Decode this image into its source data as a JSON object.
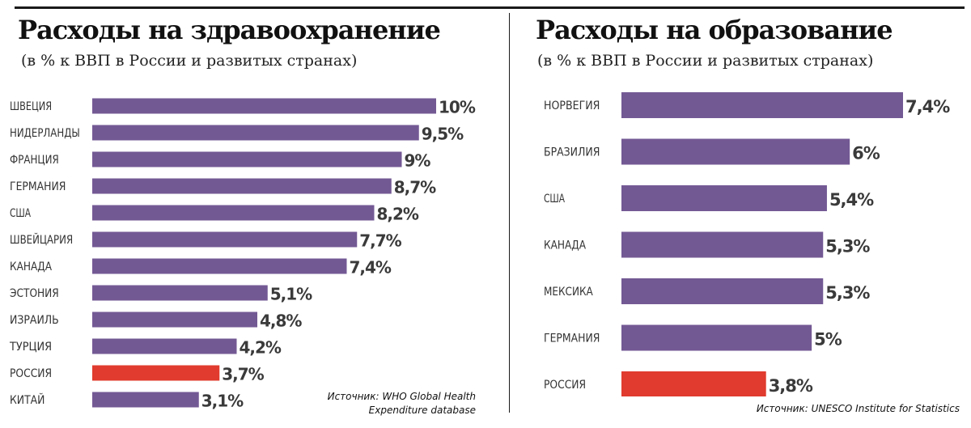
{
  "colors": {
    "bar": "#735994",
    "highlight": "#e03b2e",
    "text": "#333333",
    "value": "#3a3a3a"
  },
  "left": {
    "title": "Расходы на здравоохранение",
    "subtitle": "(в % к ВВП в России и развитых странах)",
    "source_line1": "Источник: WHO Global Health",
    "source_line2": "Expenditure database"
  },
  "right": {
    "title": "Расходы на образование",
    "subtitle": "(в % к ВВП в России и развитых странах)",
    "source_line1": "Источник: UNESCO Institute for Statistics"
  },
  "chart_data": [
    {
      "type": "bar",
      "orientation": "horizontal",
      "title": "Расходы на здравоохранение",
      "subtitle": "(в % к ВВП в России и развитых странах)",
      "categories": [
        "ШВЕЦИЯ",
        "НИДЕРЛАНДЫ",
        "ФРАНЦИЯ",
        "ГЕРМАНИЯ",
        "США",
        "ШВЕЙЦАРИЯ",
        "КАНАДА",
        "ЭСТОНИЯ",
        "ИЗРАИЛЬ",
        "ТУРЦИЯ",
        "РОССИЯ",
        "КИТАЙ"
      ],
      "values": [
        10,
        9.5,
        9,
        8.7,
        8.2,
        7.7,
        7.4,
        5.1,
        4.8,
        4.2,
        3.7,
        3.1
      ],
      "value_labels": [
        "10%",
        "9,5%",
        "9%",
        "8,7%",
        "8,2%",
        "7,7%",
        "7,4%",
        "5,1%",
        "4,8%",
        "4,2%",
        "3,7%",
        "3,1%"
      ],
      "highlight": "РОССИЯ",
      "xlim": [
        0,
        10
      ],
      "grid": false,
      "legend": "none"
    },
    {
      "type": "bar",
      "orientation": "horizontal",
      "title": "Расходы на образование",
      "subtitle": "(в % к ВВП в России и развитых странах)",
      "categories": [
        "НОРВЕГИЯ",
        "БРАЗИЛИЯ",
        "США",
        "КАНАДА",
        "МЕКСИКА",
        "ГЕРМАНИЯ",
        "РОССИЯ"
      ],
      "values": [
        7.4,
        6,
        5.4,
        5.3,
        5.3,
        5,
        3.8
      ],
      "value_labels": [
        "7,4%",
        "6%",
        "5,4%",
        "5,3%",
        "5,3%",
        "5%",
        "3,8%"
      ],
      "highlight": "РОССИЯ",
      "xlim": [
        0,
        7.4
      ],
      "grid": false,
      "legend": "none"
    }
  ]
}
